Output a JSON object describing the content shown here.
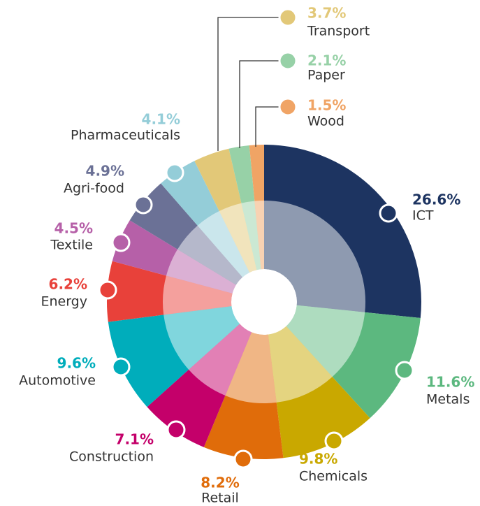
{
  "chart_data": {
    "type": "pie",
    "categories": [
      "ICT",
      "Metals",
      "Chemicals",
      "Retail",
      "Construction",
      "Automotive",
      "Energy",
      "Textile",
      "Agri-food",
      "Pharmaceuticals",
      "Transport",
      "Paper",
      "Wood"
    ],
    "values": [
      26.6,
      11.6,
      9.8,
      8.2,
      7.1,
      9.6,
      6.2,
      4.5,
      4.9,
      4.1,
      3.7,
      2.1,
      1.5
    ],
    "value_labels": [
      "26.6%",
      "11.6%",
      "9.8%",
      "8.2%",
      "7.1%",
      "9.6%",
      "6.2%",
      "4.5%",
      "4.9%",
      "4.1%",
      "3.7%",
      "2.1%",
      "1.5%"
    ],
    "colors": [
      "#1d3461",
      "#5cb87f",
      "#c9a800",
      "#e06c0a",
      "#c4006a",
      "#00adbb",
      "#e8413a",
      "#b660a8",
      "#6b7196",
      "#94cdd8",
      "#e2c878",
      "#97d1a7",
      "#f0a465"
    ]
  }
}
